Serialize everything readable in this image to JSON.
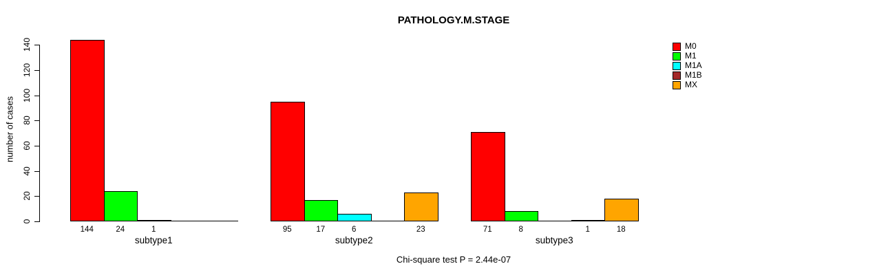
{
  "chart_data": {
    "type": "bar",
    "title": "PATHOLOGY.M.STAGE",
    "xlabel": "",
    "ylabel": "number of cases",
    "ylim": [
      0,
      140
    ],
    "yticks": [
      0,
      20,
      40,
      60,
      80,
      100,
      120,
      140
    ],
    "grid": false,
    "legend_position": "top-right",
    "bar_value_labels": "shown under each non-zero bar",
    "categories": [
      "subtype1",
      "subtype2",
      "subtype3"
    ],
    "series": [
      {
        "name": "M0",
        "color": "#FF0000",
        "values": [
          144,
          95,
          71
        ]
      },
      {
        "name": "M1",
        "color": "#00FF00",
        "values": [
          24,
          17,
          8
        ]
      },
      {
        "name": "M1A",
        "color": "#00FFFF",
        "values": [
          1,
          6,
          0
        ]
      },
      {
        "name": "M1B",
        "color": "#A52A2A",
        "values": [
          0,
          0,
          1
        ]
      },
      {
        "name": "MX",
        "color": "#FFA500",
        "values": [
          0,
          23,
          18
        ]
      }
    ],
    "footnote": "Chi-square test P = 2.44e-07"
  },
  "colors": {
    "axis": "#000000",
    "text": "#000000",
    "background": "#ffffff"
  }
}
